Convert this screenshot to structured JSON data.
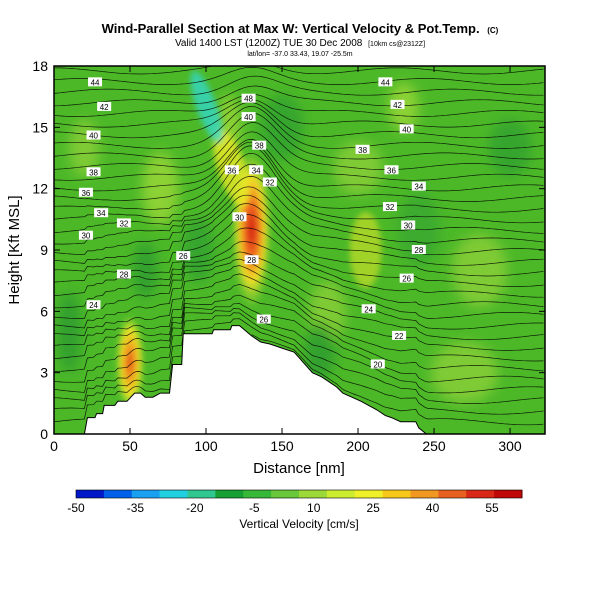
{
  "chart_data": {
    "type": "heatmap",
    "title": "Wind-Parallel Section at Max W: Vertical Velocity & Pot.Temp.",
    "copyright": "(C)",
    "subtitle": "Valid 1400 LST (1200Z) TUE 30 Dec 2008",
    "subtitle_note": "[10km cs@2312Z]",
    "subtitle2": "lat/lon= -37.0 33.43, 19.07 -25.5m",
    "xlabel": "Distance [nm]",
    "ylabel": "Height [Kft MSL]",
    "xlim": [
      0,
      323
    ],
    "ylim": [
      0,
      18
    ],
    "x_ticks": [
      0,
      50,
      100,
      150,
      200,
      250,
      300
    ],
    "y_ticks": [
      0,
      3,
      6,
      9,
      12,
      15,
      18
    ],
    "colorbar": {
      "label": "Vertical Velocity [cm/s]",
      "tick_labels": [
        "-50",
        "-35",
        "-20",
        "-5",
        "10",
        "25",
        "40",
        "55"
      ],
      "colors": [
        "#0018c8",
        "#0060e8",
        "#1aa0f0",
        "#20d0e0",
        "#30c890",
        "#16a034",
        "#38b838",
        "#68c83a",
        "#9cd838",
        "#ccec30",
        "#f0f028",
        "#f8c818",
        "#f09820",
        "#e86020",
        "#d82818",
        "#c00808"
      ]
    },
    "background_color": "#4cb828",
    "terrain": {
      "x": [
        0,
        20,
        22,
        27,
        28,
        32,
        33,
        40,
        42,
        48,
        53,
        57,
        60,
        65,
        70,
        76,
        78,
        84,
        85,
        104,
        105,
        116,
        117,
        122,
        130,
        136,
        142,
        150,
        158,
        164,
        170,
        176,
        182,
        186,
        190,
        196,
        202,
        212,
        218,
        222,
        228,
        238,
        240,
        245,
        323
      ],
      "h": [
        0,
        0,
        0.8,
        0.8,
        1.0,
        1.0,
        1.4,
        1.4,
        1.6,
        1.6,
        2.0,
        2.0,
        1.8,
        1.8,
        2.0,
        2.0,
        3.4,
        3.4,
        4.9,
        4.9,
        5.1,
        5.1,
        5.3,
        5.3,
        4.8,
        4.5,
        4.4,
        4.2,
        4.0,
        3.5,
        3.0,
        2.8,
        2.5,
        2.3,
        2.0,
        1.8,
        1.6,
        1.2,
        0.9,
        0.8,
        0.6,
        0.6,
        0.3,
        0,
        0
      ]
    },
    "updraft_cores": [
      {
        "x": 50,
        "h": 3.5,
        "w_max": 40
      },
      {
        "x": 130,
        "h": 10.0,
        "w_max": 55
      }
    ],
    "contour_labels": [
      {
        "text": "44",
        "x": 27,
        "h": 17.2
      },
      {
        "text": "42",
        "x": 33,
        "h": 16.0
      },
      {
        "text": "40",
        "x": 26,
        "h": 14.6
      },
      {
        "text": "38",
        "x": 26,
        "h": 12.8
      },
      {
        "text": "36",
        "x": 21,
        "h": 11.8
      },
      {
        "text": "34",
        "x": 31,
        "h": 10.8
      },
      {
        "text": "32",
        "x": 46,
        "h": 10.3
      },
      {
        "text": "30",
        "x": 21,
        "h": 9.7
      },
      {
        "text": "28",
        "x": 46,
        "h": 7.8
      },
      {
        "text": "26",
        "x": 85,
        "h": 8.7
      },
      {
        "text": "24",
        "x": 26,
        "h": 6.3
      },
      {
        "text": "48",
        "x": 128,
        "h": 16.4
      },
      {
        "text": "40",
        "x": 128,
        "h": 15.5
      },
      {
        "text": "38",
        "x": 135,
        "h": 14.1
      },
      {
        "text": "36",
        "x": 117,
        "h": 12.9
      },
      {
        "text": "34",
        "x": 133,
        "h": 12.9
      },
      {
        "text": "32",
        "x": 142,
        "h": 12.3
      },
      {
        "text": "30",
        "x": 122,
        "h": 10.6
      },
      {
        "text": "28",
        "x": 130,
        "h": 8.5
      },
      {
        "text": "26",
        "x": 138,
        "h": 5.6
      },
      {
        "text": "44",
        "x": 218,
        "h": 17.2
      },
      {
        "text": "42",
        "x": 226,
        "h": 16.1
      },
      {
        "text": "40",
        "x": 232,
        "h": 14.9
      },
      {
        "text": "38",
        "x": 203,
        "h": 13.9
      },
      {
        "text": "36",
        "x": 222,
        "h": 12.9
      },
      {
        "text": "34",
        "x": 240,
        "h": 12.1
      },
      {
        "text": "32",
        "x": 221,
        "h": 11.1
      },
      {
        "text": "30",
        "x": 233,
        "h": 10.2
      },
      {
        "text": "28",
        "x": 240,
        "h": 9.0
      },
      {
        "text": "26",
        "x": 232,
        "h": 7.6
      },
      {
        "text": "24",
        "x": 207,
        "h": 6.1
      },
      {
        "text": "22",
        "x": 227,
        "h": 4.8
      },
      {
        "text": "20",
        "x": 213,
        "h": 3.4
      }
    ]
  }
}
